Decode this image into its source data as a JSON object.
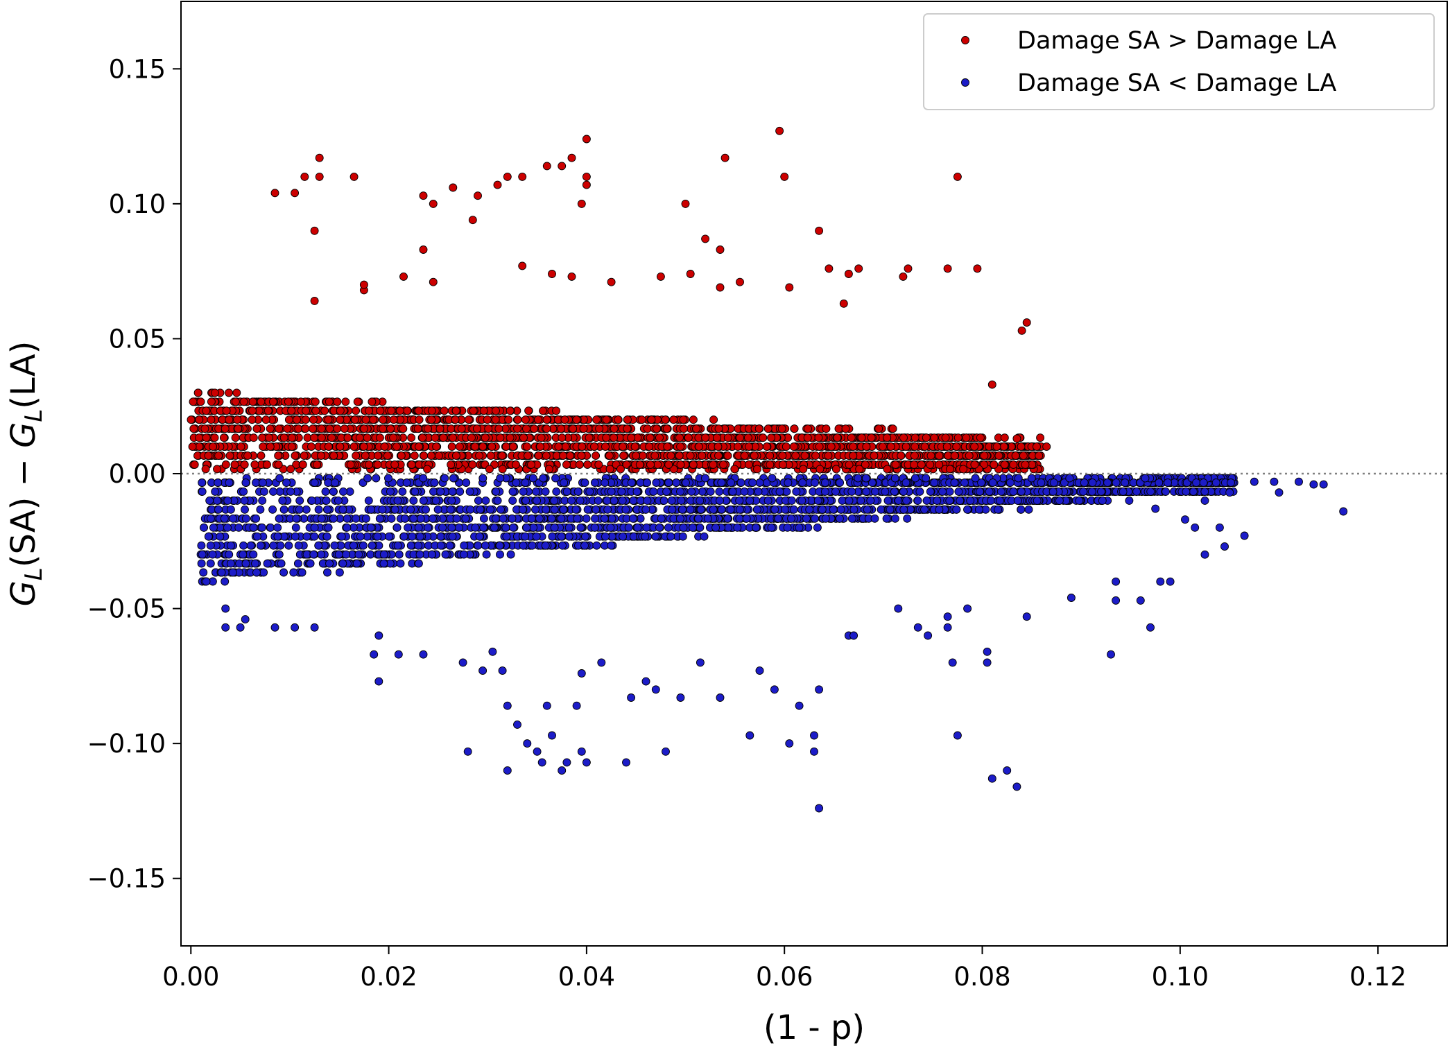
{
  "chart_data": {
    "type": "scatter",
    "title": "",
    "xlabel": "(1 - p)",
    "ylabel_parts": [
      "G",
      "L",
      "(SA) − ",
      "G",
      "L",
      "(LA)"
    ],
    "xlim": [
      -0.001,
      0.127
    ],
    "ylim": [
      -0.175,
      0.175
    ],
    "x_ticks": [
      0.0,
      0.02,
      0.04,
      0.06,
      0.08,
      0.1,
      0.12
    ],
    "x_tick_labels": [
      "0.00",
      "0.02",
      "0.04",
      "0.06",
      "0.08",
      "0.10",
      "0.12"
    ],
    "y_ticks": [
      0.15,
      0.1,
      0.05,
      0.0,
      -0.05,
      -0.1,
      -0.15
    ],
    "y_tick_labels": [
      "0.15",
      "0.10",
      "0.05",
      "0.00",
      "−0.05",
      "−0.10",
      "−0.15"
    ],
    "grid": false,
    "reference_line": {
      "y": 0.0,
      "style": "dotted",
      "color": "#808080"
    },
    "legend": {
      "placement": "top-right"
    },
    "series": [
      {
        "name": "Damage SA > Damage LA",
        "color": "#cc0000",
        "edge_color": "#000000",
        "cloud": {
          "x_min": 0.0,
          "x_max": 0.086,
          "y_at_start": 0.03,
          "y_at_end": 0.012,
          "y_sign": 1,
          "count": 2200
        },
        "points": [
          [
            0.0085,
            0.104
          ],
          [
            0.0105,
            0.104
          ],
          [
            0.0115,
            0.11
          ],
          [
            0.0125,
            0.09
          ],
          [
            0.013,
            0.117
          ],
          [
            0.013,
            0.11
          ],
          [
            0.0165,
            0.11
          ],
          [
            0.0235,
            0.103
          ],
          [
            0.0245,
            0.1
          ],
          [
            0.0235,
            0.083
          ],
          [
            0.0265,
            0.106
          ],
          [
            0.0285,
            0.094
          ],
          [
            0.029,
            0.103
          ],
          [
            0.031,
            0.107
          ],
          [
            0.032,
            0.11
          ],
          [
            0.0335,
            0.11
          ],
          [
            0.036,
            0.114
          ],
          [
            0.0375,
            0.114
          ],
          [
            0.0385,
            0.117
          ],
          [
            0.04,
            0.124
          ],
          [
            0.04,
            0.11
          ],
          [
            0.04,
            0.107
          ],
          [
            0.0395,
            0.1
          ],
          [
            0.05,
            0.1
          ],
          [
            0.052,
            0.087
          ],
          [
            0.0535,
            0.083
          ],
          [
            0.054,
            0.117
          ],
          [
            0.0595,
            0.127
          ],
          [
            0.06,
            0.11
          ],
          [
            0.0635,
            0.09
          ],
          [
            0.0775,
            0.11
          ],
          [
            0.0245,
            0.071
          ],
          [
            0.0215,
            0.073
          ],
          [
            0.0175,
            0.068
          ],
          [
            0.0335,
            0.077
          ],
          [
            0.0365,
            0.074
          ],
          [
            0.0385,
            0.073
          ],
          [
            0.0425,
            0.071
          ],
          [
            0.0475,
            0.073
          ],
          [
            0.0505,
            0.074
          ],
          [
            0.0535,
            0.069
          ],
          [
            0.0555,
            0.071
          ],
          [
            0.0605,
            0.069
          ],
          [
            0.0645,
            0.076
          ],
          [
            0.0665,
            0.074
          ],
          [
            0.0675,
            0.076
          ],
          [
            0.0725,
            0.076
          ],
          [
            0.0765,
            0.076
          ],
          [
            0.0795,
            0.076
          ],
          [
            0.066,
            0.063
          ],
          [
            0.072,
            0.073
          ],
          [
            0.0845,
            0.056
          ],
          [
            0.084,
            0.053
          ],
          [
            0.081,
            0.033
          ],
          [
            0.0855,
            0.01
          ],
          [
            0.0865,
            0.01
          ],
          [
            0.0835,
            0.013
          ],
          [
            0.0175,
            0.07
          ],
          [
            0.0125,
            0.064
          ]
        ]
      },
      {
        "name": "Damage SA < Damage LA",
        "color": "#1c1cc8",
        "edge_color": "#000000",
        "cloud": {
          "x_min": 0.001,
          "x_max": 0.1055,
          "y_at_start": -0.04,
          "y_at_end": -0.005,
          "y_sign": -1,
          "count": 2400
        },
        "points": [
          [
            0.0035,
            -0.05
          ],
          [
            0.0035,
            -0.057
          ],
          [
            0.005,
            -0.057
          ],
          [
            0.0055,
            -0.054
          ],
          [
            0.0085,
            -0.057
          ],
          [
            0.0105,
            -0.057
          ],
          [
            0.0125,
            -0.057
          ],
          [
            0.0185,
            -0.067
          ],
          [
            0.019,
            -0.077
          ],
          [
            0.019,
            -0.06
          ],
          [
            0.021,
            -0.067
          ],
          [
            0.0235,
            -0.067
          ],
          [
            0.0275,
            -0.07
          ],
          [
            0.028,
            -0.103
          ],
          [
            0.0295,
            -0.073
          ],
          [
            0.0305,
            -0.066
          ],
          [
            0.0315,
            -0.073
          ],
          [
            0.032,
            -0.086
          ],
          [
            0.032,
            -0.11
          ],
          [
            0.033,
            -0.093
          ],
          [
            0.034,
            -0.1
          ],
          [
            0.035,
            -0.103
          ],
          [
            0.0355,
            -0.107
          ],
          [
            0.0365,
            -0.097
          ],
          [
            0.0375,
            -0.11
          ],
          [
            0.038,
            -0.107
          ],
          [
            0.0395,
            -0.103
          ],
          [
            0.04,
            -0.107
          ],
          [
            0.044,
            -0.107
          ],
          [
            0.036,
            -0.086
          ],
          [
            0.039,
            -0.086
          ],
          [
            0.0445,
            -0.083
          ],
          [
            0.046,
            -0.077
          ],
          [
            0.047,
            -0.08
          ],
          [
            0.048,
            -0.103
          ],
          [
            0.0495,
            -0.083
          ],
          [
            0.0535,
            -0.083
          ],
          [
            0.0565,
            -0.097
          ],
          [
            0.0575,
            -0.073
          ],
          [
            0.059,
            -0.08
          ],
          [
            0.0605,
            -0.1
          ],
          [
            0.0615,
            -0.086
          ],
          [
            0.063,
            -0.097
          ],
          [
            0.063,
            -0.103
          ],
          [
            0.0635,
            -0.08
          ],
          [
            0.0635,
            -0.124
          ],
          [
            0.0515,
            -0.07
          ],
          [
            0.0415,
            -0.07
          ],
          [
            0.0395,
            -0.074
          ],
          [
            0.0665,
            -0.06
          ],
          [
            0.067,
            -0.06
          ],
          [
            0.0715,
            -0.05
          ],
          [
            0.0735,
            -0.057
          ],
          [
            0.0745,
            -0.06
          ],
          [
            0.0765,
            -0.057
          ],
          [
            0.0765,
            -0.053
          ],
          [
            0.0785,
            -0.05
          ],
          [
            0.077,
            -0.07
          ],
          [
            0.0775,
            -0.097
          ],
          [
            0.0805,
            -0.066
          ],
          [
            0.0805,
            -0.07
          ],
          [
            0.081,
            -0.113
          ],
          [
            0.0825,
            -0.11
          ],
          [
            0.0835,
            -0.116
          ],
          [
            0.0845,
            -0.053
          ],
          [
            0.089,
            -0.046
          ],
          [
            0.093,
            -0.067
          ],
          [
            0.0935,
            -0.047
          ],
          [
            0.0935,
            -0.04
          ],
          [
            0.096,
            -0.047
          ],
          [
            0.097,
            -0.057
          ],
          [
            0.098,
            -0.04
          ],
          [
            0.099,
            -0.04
          ],
          [
            0.1025,
            -0.03
          ],
          [
            0.104,
            -0.02
          ],
          [
            0.1045,
            -0.027
          ],
          [
            0.1065,
            -0.023
          ],
          [
            0.1075,
            -0.003
          ],
          [
            0.1095,
            -0.003
          ],
          [
            0.11,
            -0.007
          ],
          [
            0.112,
            -0.003
          ],
          [
            0.1135,
            -0.004
          ],
          [
            0.1145,
            -0.004
          ],
          [
            0.1165,
            -0.014
          ],
          [
            0.1025,
            -0.01
          ],
          [
            0.105,
            -0.007
          ],
          [
            0.0975,
            -0.013
          ],
          [
            0.1005,
            -0.017
          ],
          [
            0.1015,
            -0.02
          ]
        ]
      }
    ]
  }
}
